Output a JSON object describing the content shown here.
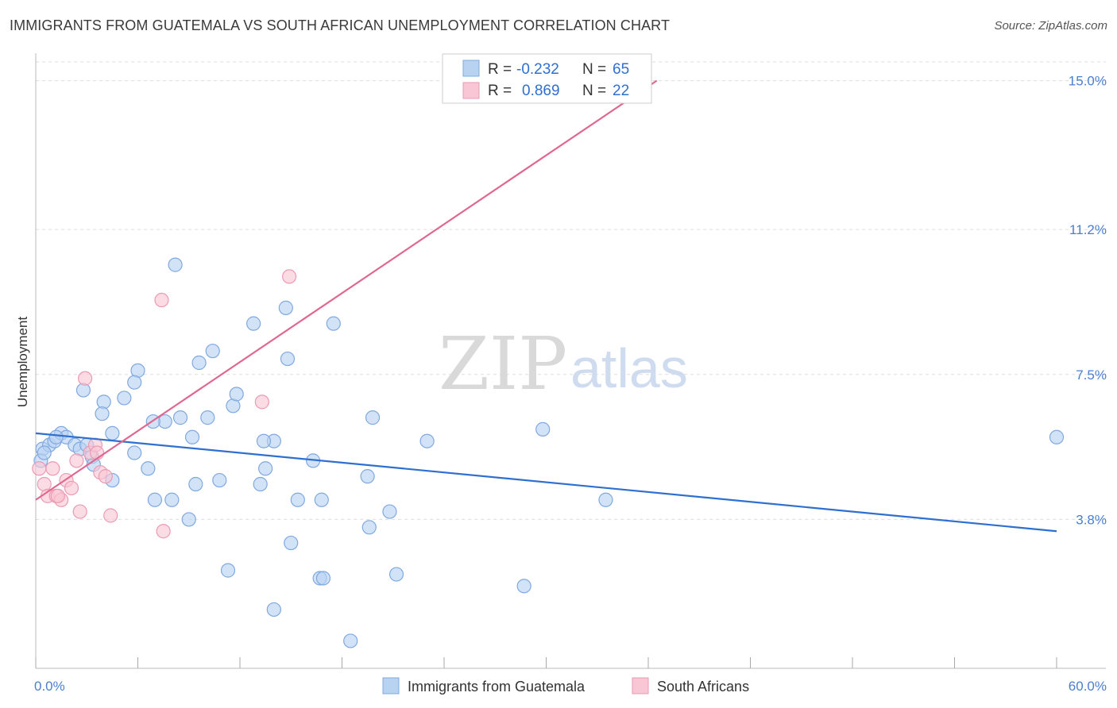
{
  "title": "IMMIGRANTS FROM GUATEMALA VS SOUTH AFRICAN UNEMPLOYMENT CORRELATION CHART",
  "source": "Source: ZipAtlas.com",
  "watermark": {
    "zip": "ZIP",
    "atlas": "atlas"
  },
  "colors": {
    "blue_fill": "#b8d2f2",
    "blue_stroke": "#7fa9e0",
    "blue_line": "#2e6fd0",
    "pink_fill": "#f8c6d4",
    "pink_stroke": "#ec9ab3",
    "pink_line": "#e06890",
    "tick_text": "#4a7fd0",
    "grid": "#dddddd"
  },
  "stats": [
    {
      "r_label": "R =",
      "r_value": "-0.232",
      "n_label": "N =",
      "n_value": "65"
    },
    {
      "r_label": "R =",
      "r_value": "0.869",
      "n_label": "N =",
      "n_value": "22"
    }
  ],
  "chart_data": {
    "type": "scatter",
    "title": "IMMIGRANTS FROM GUATEMALA VS SOUTH AFRICAN UNEMPLOYMENT CORRELATION CHART",
    "xlabel": "",
    "ylabel": "Unemployment",
    "xlim": [
      0,
      60
    ],
    "ylim": [
      0,
      15.6
    ],
    "x_tick_labels": [
      "0.0%",
      "60.0%"
    ],
    "y_ticks": [
      3.8,
      7.5,
      11.2,
      15.0
    ],
    "y_tick_labels": [
      "3.8%",
      "7.5%",
      "11.2%",
      "15.0%"
    ],
    "grid": true,
    "legend_position": "bottom-center",
    "series": [
      {
        "name": "Immigrants from Guatemala",
        "color": "#b8d2f2",
        "trend": {
          "x": [
            0,
            60
          ],
          "y": [
            6.0,
            3.5
          ]
        },
        "points": [
          [
            0.4,
            5.6
          ],
          [
            0.8,
            5.7
          ],
          [
            1.1,
            5.8
          ],
          [
            1.5,
            6.0
          ],
          [
            1.8,
            5.9
          ],
          [
            2.3,
            5.7
          ],
          [
            2.6,
            5.6
          ],
          [
            3.0,
            5.7
          ],
          [
            3.3,
            5.4
          ],
          [
            2.8,
            7.1
          ],
          [
            4.0,
            6.8
          ],
          [
            4.5,
            6.0
          ],
          [
            5.2,
            6.9
          ],
          [
            3.9,
            6.5
          ],
          [
            6.0,
            7.6
          ],
          [
            5.8,
            7.3
          ],
          [
            7.6,
            6.3
          ],
          [
            8.2,
            10.3
          ],
          [
            8.5,
            6.4
          ],
          [
            6.9,
            6.3
          ],
          [
            9.6,
            7.8
          ],
          [
            10.4,
            8.1
          ],
          [
            10.1,
            6.4
          ],
          [
            11.6,
            6.7
          ],
          [
            11.8,
            7.0
          ],
          [
            12.8,
            8.8
          ],
          [
            14.7,
            9.2
          ],
          [
            14.8,
            7.9
          ],
          [
            17.5,
            8.8
          ],
          [
            9.2,
            5.9
          ],
          [
            14.0,
            5.8
          ],
          [
            13.4,
            5.8
          ],
          [
            16.3,
            5.3
          ],
          [
            13.5,
            5.1
          ],
          [
            6.6,
            5.1
          ],
          [
            4.5,
            4.8
          ],
          [
            3.4,
            5.2
          ],
          [
            5.8,
            5.5
          ],
          [
            7.0,
            4.3
          ],
          [
            8.0,
            4.3
          ],
          [
            9.4,
            4.7
          ],
          [
            10.8,
            4.8
          ],
          [
            13.2,
            4.7
          ],
          [
            15.4,
            4.3
          ],
          [
            16.8,
            4.3
          ],
          [
            19.5,
            4.9
          ],
          [
            20.8,
            4.0
          ],
          [
            19.6,
            3.6
          ],
          [
            9.0,
            3.8
          ],
          [
            15.0,
            3.2
          ],
          [
            11.3,
            2.5
          ],
          [
            16.7,
            2.3
          ],
          [
            16.9,
            2.3
          ],
          [
            21.2,
            2.4
          ],
          [
            14.0,
            1.5
          ],
          [
            18.5,
            0.7
          ],
          [
            28.7,
            2.1
          ],
          [
            33.5,
            4.3
          ],
          [
            23.0,
            5.8
          ],
          [
            19.8,
            6.4
          ],
          [
            29.8,
            6.1
          ],
          [
            60.0,
            5.9
          ],
          [
            0.3,
            5.3
          ],
          [
            0.5,
            5.5
          ],
          [
            1.2,
            5.9
          ]
        ]
      },
      {
        "name": "South Africans",
        "color": "#f8c6d4",
        "trend": {
          "x": [
            0,
            36.5
          ],
          "y": [
            4.3,
            15.0
          ]
        },
        "points": [
          [
            0.2,
            5.1
          ],
          [
            0.5,
            4.7
          ],
          [
            0.7,
            4.4
          ],
          [
            1.0,
            5.1
          ],
          [
            1.2,
            4.4
          ],
          [
            1.5,
            4.3
          ],
          [
            1.8,
            4.8
          ],
          [
            2.1,
            4.6
          ],
          [
            2.4,
            5.3
          ],
          [
            2.6,
            4.0
          ],
          [
            2.9,
            7.4
          ],
          [
            3.2,
            5.5
          ],
          [
            3.5,
            5.7
          ],
          [
            3.8,
            5.0
          ],
          [
            4.1,
            4.9
          ],
          [
            4.4,
            3.9
          ],
          [
            7.4,
            9.4
          ],
          [
            7.5,
            3.5
          ],
          [
            13.3,
            6.8
          ],
          [
            14.9,
            10.0
          ],
          [
            3.6,
            5.5
          ],
          [
            1.3,
            4.4
          ]
        ]
      }
    ]
  }
}
